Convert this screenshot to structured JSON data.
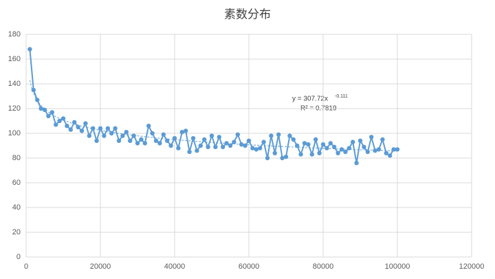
{
  "chart_data": {
    "type": "scatter",
    "title": "素数分布",
    "x": [
      1000,
      2000,
      3000,
      4000,
      5000,
      6000,
      7000,
      8000,
      9000,
      10000,
      11000,
      12000,
      13000,
      14000,
      15000,
      16000,
      17000,
      18000,
      19000,
      20000,
      21000,
      22000,
      23000,
      24000,
      25000,
      26000,
      27000,
      28000,
      29000,
      30000,
      31000,
      32000,
      33000,
      34000,
      35000,
      36000,
      37000,
      38000,
      39000,
      40000,
      41000,
      42000,
      43000,
      44000,
      45000,
      46000,
      47000,
      48000,
      49000,
      50000,
      51000,
      52000,
      53000,
      54000,
      55000,
      56000,
      57000,
      58000,
      59000,
      60000,
      61000,
      62000,
      63000,
      64000,
      65000,
      66000,
      67000,
      68000,
      69000,
      70000,
      71000,
      72000,
      73000,
      74000,
      75000,
      76000,
      77000,
      78000,
      79000,
      80000,
      81000,
      82000,
      83000,
      84000,
      85000,
      86000,
      87000,
      88000,
      89000,
      90000,
      91000,
      92000,
      93000,
      94000,
      95000,
      96000,
      97000,
      98000,
      99000,
      100000
    ],
    "series": [
      {
        "color": "#5b9bd5",
        "values": [
          168,
          135,
          127,
          120,
          119,
          114,
          117,
          107,
          110,
          112,
          106,
          103,
          109,
          105,
          102,
          108,
          98,
          104,
          94,
          104,
          98,
          104,
          100,
          104,
          94,
          98,
          101,
          94,
          98,
          92,
          95,
          92,
          106,
          100,
          94,
          92,
          99,
          94,
          90,
          96,
          88,
          101,
          102,
          85,
          96,
          86,
          90,
          95,
          89,
          98,
          89,
          97,
          89,
          92,
          90,
          93,
          99,
          91,
          90,
          94,
          88,
          87,
          88,
          93,
          80,
          98,
          84,
          99,
          80,
          81,
          98,
          95,
          90,
          83,
          92,
          91,
          83,
          95,
          84,
          91,
          88,
          92,
          89,
          84,
          87,
          85,
          88,
          93,
          76,
          94,
          89,
          85,
          97,
          86,
          87,
          95,
          84,
          82,
          87,
          87
        ]
      }
    ],
    "trendline": {
      "coefficient": 307.72,
      "power": -0.111,
      "equation": "y = 307.72x",
      "exponent": "-0.111",
      "r2": "R² = 0.7819",
      "color": "#5b9bd5"
    },
    "xlim": [
      0,
      120000
    ],
    "xticks": [
      0,
      20000,
      40000,
      60000,
      80000,
      100000,
      120000
    ],
    "ylim": [
      0,
      180
    ],
    "yticks": [
      0,
      20,
      40,
      60,
      80,
      100,
      120,
      140,
      160,
      180
    ],
    "grid": true
  }
}
